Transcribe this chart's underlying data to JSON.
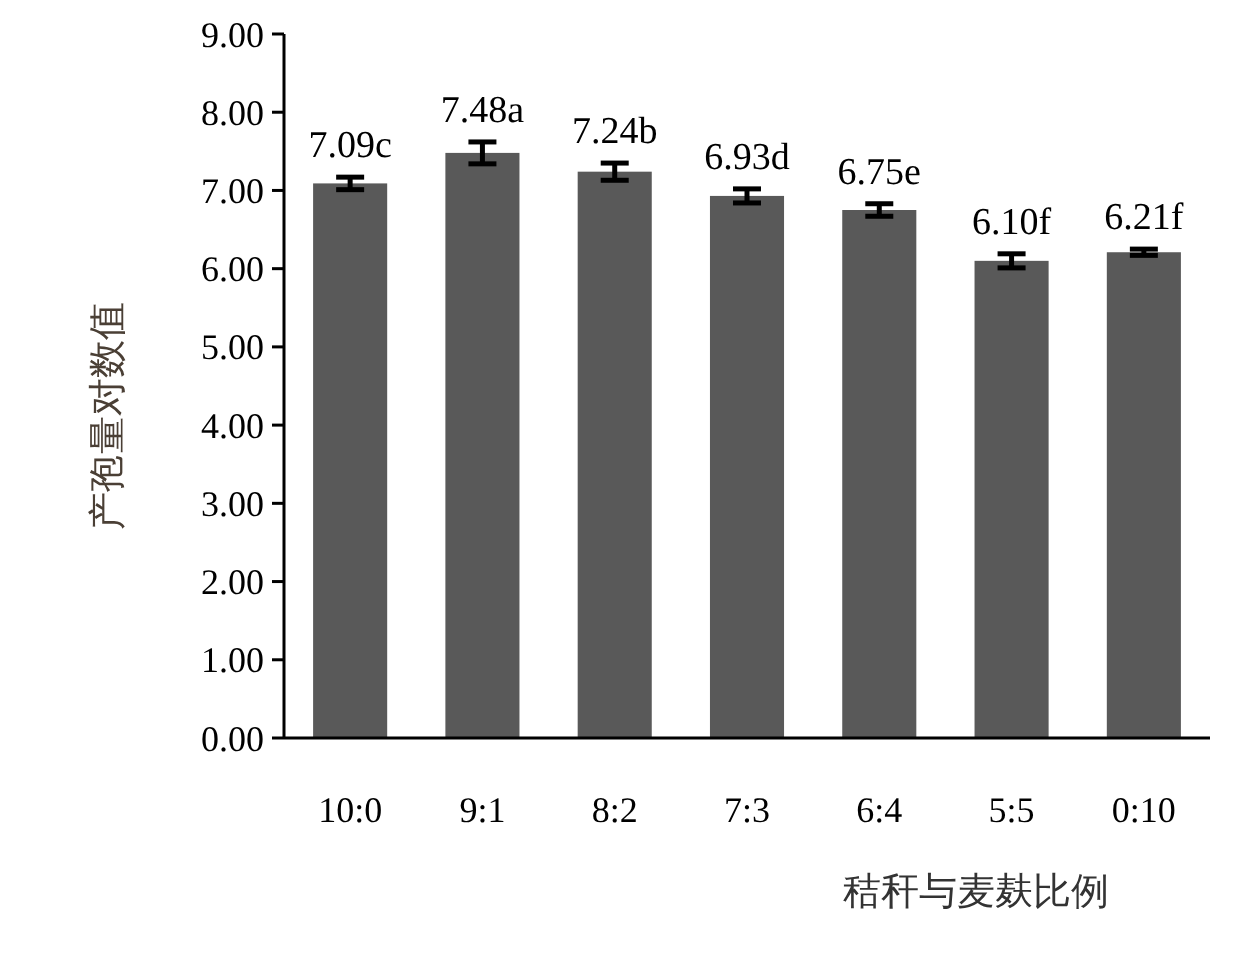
{
  "chart_data": {
    "type": "bar",
    "xlabel": "秸秆与麦麸比例",
    "ylabel": "产孢量对数值",
    "categories": [
      "10:0",
      "9:1",
      "8:2",
      "7:3",
      "6:4",
      "5:5",
      "0:10"
    ],
    "values": [
      7.09,
      7.48,
      7.24,
      6.93,
      6.75,
      6.1,
      6.21
    ],
    "errors": [
      0.08,
      0.14,
      0.11,
      0.09,
      0.08,
      0.09,
      0.04
    ],
    "value_labels": [
      "7.09c",
      "7.48a",
      "7.24b",
      "6.93d",
      "6.75e",
      "6.10f",
      "6.21f"
    ],
    "color": "#595959",
    "ylim": [
      0,
      9
    ],
    "yticks": [
      {
        "value": 0,
        "label": "0.00"
      },
      {
        "value": 1,
        "label": "1.00"
      },
      {
        "value": 2,
        "label": "2.00"
      },
      {
        "value": 3,
        "label": "3.00"
      },
      {
        "value": 4,
        "label": "4.00"
      },
      {
        "value": 5,
        "label": "5.00"
      },
      {
        "value": 6,
        "label": "6.00"
      },
      {
        "value": 7,
        "label": "7.00"
      },
      {
        "value": 8,
        "label": "8.00"
      },
      {
        "value": 9,
        "label": "9.00"
      }
    ],
    "grid": false
  }
}
